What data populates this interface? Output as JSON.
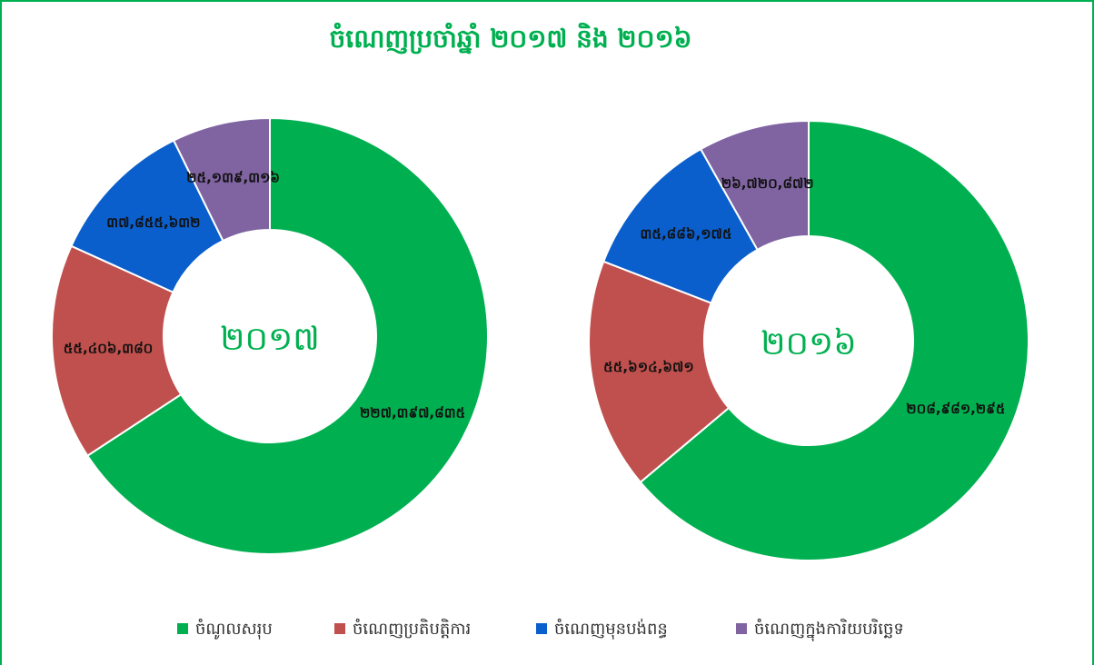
{
  "title": "ចំណេញប្រចាំឆ្នាំ ២០១៧ និង ២០១៦",
  "chart_data": [
    {
      "type": "pie",
      "title": "២០១៧",
      "categories": [
        "ចំណូលសរុប",
        "ចំណេញប្រតិបត្តិការ",
        "ចំណេញមុនបង់ពន្ធ",
        "ចំណេញក្នុងការិយបរិច្ឆេទ"
      ],
      "values": [
        227397835,
        55406380,
        37855632,
        25139316
      ],
      "value_labels": [
        "២២៧,៣៩៧,៨៣៥",
        "៥៥,៤០៦,៣៨០",
        "៣៧,៨៥៥,៦៣២",
        "២៥,១៣៩,៣១៦"
      ],
      "colors": [
        "#00b050",
        "#c0504d",
        "#0b5fcc",
        "#8064a2"
      ]
    },
    {
      "type": "pie",
      "title": "២០១៦",
      "categories": [
        "ចំណូលសរុប",
        "ចំណេញប្រតិបត្តិការ",
        "ចំណេញមុនបង់ពន្ធ",
        "ចំណេញក្នុងការិយបរិច្ឆេទ"
      ],
      "values": [
        208981295,
        55614671,
        35886175,
        26720872
      ],
      "value_labels": [
        "២០៨,៩៨១,២៩៥",
        "៥៥,៦១៤,៦៧១",
        "៣៥,៨៨៦,១៧៥",
        "២៦,៧២០,៨៧២"
      ],
      "colors": [
        "#00b050",
        "#c0504d",
        "#0b5fcc",
        "#8064a2"
      ]
    }
  ]
}
